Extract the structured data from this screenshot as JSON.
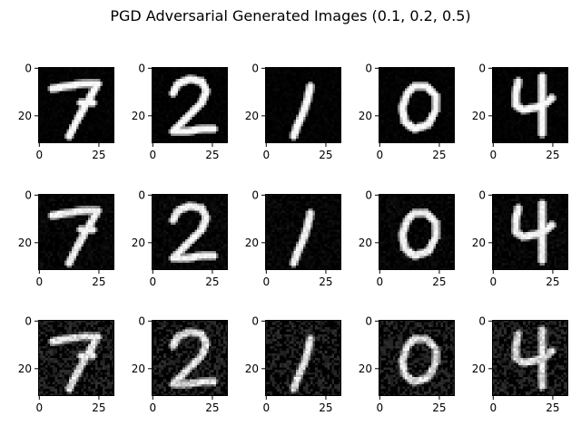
{
  "chart_data": {
    "type": "image-grid",
    "title": "PGD Adversarial Generated Images (0.1, 0.2, 0.5)",
    "epsilons": [
      0.1,
      0.2,
      0.5
    ],
    "digits": [
      "7",
      "2",
      "1",
      "0",
      "4"
    ],
    "image_size": 32,
    "x_ticks": [
      0,
      25
    ],
    "y_ticks": [
      0,
      20
    ],
    "colormap": "gray",
    "panels": [
      {
        "row": 0,
        "col": 0,
        "digit": "7",
        "epsilon": 0.1
      },
      {
        "row": 0,
        "col": 1,
        "digit": "2",
        "epsilon": 0.1
      },
      {
        "row": 0,
        "col": 2,
        "digit": "1",
        "epsilon": 0.1
      },
      {
        "row": 0,
        "col": 3,
        "digit": "0",
        "epsilon": 0.1
      },
      {
        "row": 0,
        "col": 4,
        "digit": "4",
        "epsilon": 0.1
      },
      {
        "row": 1,
        "col": 0,
        "digit": "7",
        "epsilon": 0.2
      },
      {
        "row": 1,
        "col": 1,
        "digit": "2",
        "epsilon": 0.2
      },
      {
        "row": 1,
        "col": 2,
        "digit": "1",
        "epsilon": 0.2
      },
      {
        "row": 1,
        "col": 3,
        "digit": "0",
        "epsilon": 0.2
      },
      {
        "row": 1,
        "col": 4,
        "digit": "4",
        "epsilon": 0.2
      },
      {
        "row": 2,
        "col": 0,
        "digit": "7",
        "epsilon": 0.5
      },
      {
        "row": 2,
        "col": 1,
        "digit": "2",
        "epsilon": 0.5
      },
      {
        "row": 2,
        "col": 2,
        "digit": "1",
        "epsilon": 0.5
      },
      {
        "row": 2,
        "col": 3,
        "digit": "0",
        "epsilon": 0.5
      },
      {
        "row": 2,
        "col": 4,
        "digit": "4",
        "epsilon": 0.5
      }
    ]
  }
}
